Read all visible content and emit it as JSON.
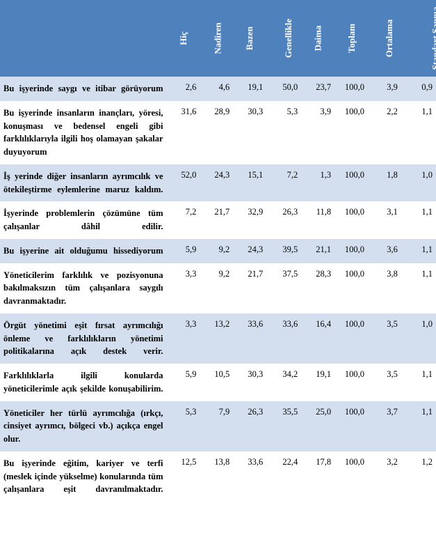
{
  "headers": [
    "Hiç",
    "Nadiren",
    "Bazen",
    "Genellikle",
    "Daima",
    "Toplam",
    "Ortalama",
    "Standart Sapma"
  ],
  "header_bg": "#4f81bd",
  "header_fg": "#ffffff",
  "row_odd_bg": "#d3dfee",
  "row_even_bg": "#ffffff",
  "rows": [
    {
      "label": "Bu işyerinde saygı ve itibar görüyorum",
      "values": [
        "2,6",
        "4,6",
        "19,1",
        "50,0",
        "23,7",
        "100,0",
        "3,9",
        "0,9"
      ]
    },
    {
      "label": "Bu işyerinde insanların inançları, yöresi, konuşması ve bedensel engeli gibi farklılıklarıyla ilgili hoş olamayan şakalar duyuyorum",
      "values": [
        "31,6",
        "28,9",
        "30,3",
        "5,3",
        "3,9",
        "100,0",
        "2,2",
        "1,1"
      ]
    },
    {
      "label": "İş yerinde diğer insanların ayrımcılık ve ötekileştirme eylemlerine maruz kaldım.",
      "values": [
        "52,0",
        "24,3",
        "15,1",
        "7,2",
        "1,3",
        "100,0",
        "1,8",
        "1,0"
      ]
    },
    {
      "label": "İşyerinde problemlerin çözümüne tüm çalışanlar dâhil edilir.",
      "values": [
        "7,2",
        "21,7",
        "32,9",
        "26,3",
        "11,8",
        "100,0",
        "3,1",
        "1,1"
      ]
    },
    {
      "label": "Bu işyerine ait olduğumu hissediyorum",
      "values": [
        "5,9",
        "9,2",
        "24,3",
        "39,5",
        "21,1",
        "100,0",
        "3,6",
        "1,1"
      ]
    },
    {
      "label": "Yöneticilerim farklılık ve pozisyonuna bakılmaksızın tüm çalışanlara saygılı davranmaktadır.",
      "values": [
        "3,3",
        "9,2",
        "21,7",
        "37,5",
        "28,3",
        "100,0",
        "3,8",
        "1,1"
      ]
    },
    {
      "label": "Örgüt yönetimi eşit fırsat ayrımcılığı önleme ve farklılıkların yönetimi politikalarına açık destek verir.",
      "values": [
        "3,3",
        "13,2",
        "33,6",
        "33,6",
        "16,4",
        "100,0",
        "3,5",
        "1,0"
      ]
    },
    {
      "label": "Farklılıklarla ilgili konularda yöneticilerimle açık şekilde konuşabilirim.",
      "values": [
        "5,9",
        "10,5",
        "30,3",
        "34,2",
        "19,1",
        "100,0",
        "3,5",
        "1,1"
      ]
    },
    {
      "label": "Yöneticiler her türlü ayrımcılığa (ırkçı, cinsiyet ayrımcı, bölgeci vb.) açıkça engel olur.",
      "values": [
        "5,3",
        "7,9",
        "26,3",
        "35,5",
        "25,0",
        "100,0",
        "3,7",
        "1,1"
      ]
    },
    {
      "label": "Bu işyerinde eğitim, kariyer ve terfi (meslek içinde yükselme) konularında tüm çalışanlara eşit davranılmaktadır.",
      "values": [
        "12,5",
        "13,8",
        "33,6",
        "22,4",
        "17,8",
        "100,0",
        "3,2",
        "1,2"
      ]
    }
  ]
}
